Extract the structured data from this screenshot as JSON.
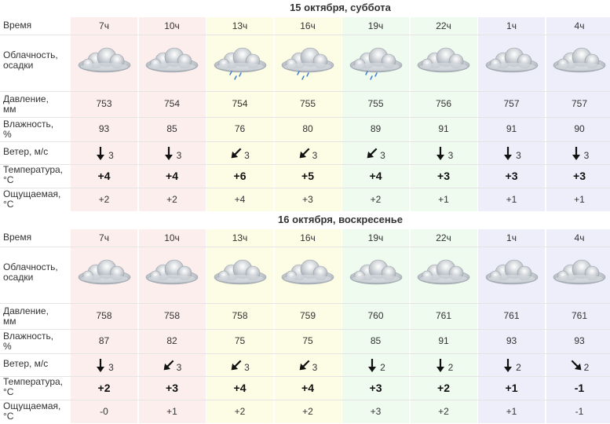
{
  "labels": {
    "time": "Время",
    "clouds1": "Облачность,",
    "clouds2": "осадки",
    "pressure1": "Давление,",
    "pressure2": "мм",
    "humidity1": "Влажность,",
    "humidity2": "%",
    "wind": "Ветер, м/с",
    "temp1": "Температура,",
    "temp2": "°C",
    "feels1": "Ощущаемая,",
    "feels2": "°C"
  },
  "colors": {
    "morning": "#fdeeee",
    "day": "#fdfde6",
    "evening": "#eefbee",
    "night": "#eeeefb"
  },
  "days": [
    {
      "title": "15 октября, суббота",
      "columns": [
        {
          "time": "7ч",
          "period": "morning",
          "icon": "cloudy-icon",
          "pressure": "753",
          "humidity": "93",
          "wind_dir": "N",
          "wind": "3",
          "temp": "+4",
          "feels": "+2"
        },
        {
          "time": "10ч",
          "period": "morning",
          "icon": "cloudy-icon",
          "pressure": "754",
          "humidity": "85",
          "wind_dir": "N",
          "wind": "3",
          "temp": "+4",
          "feels": "+2"
        },
        {
          "time": "13ч",
          "period": "day",
          "icon": "cloud-rain-icon",
          "pressure": "754",
          "humidity": "76",
          "wind_dir": "NE",
          "wind": "3",
          "temp": "+6",
          "feels": "+4"
        },
        {
          "time": "16ч",
          "period": "day",
          "icon": "cloud-rain-icon",
          "pressure": "755",
          "humidity": "80",
          "wind_dir": "NE",
          "wind": "3",
          "temp": "+5",
          "feels": "+3"
        },
        {
          "time": "19ч",
          "period": "evening",
          "icon": "cloud-rain-icon",
          "pressure": "755",
          "humidity": "89",
          "wind_dir": "NE",
          "wind": "3",
          "temp": "+4",
          "feels": "+2"
        },
        {
          "time": "22ч",
          "period": "evening",
          "icon": "cloudy-icon",
          "pressure": "756",
          "humidity": "91",
          "wind_dir": "N",
          "wind": "3",
          "temp": "+3",
          "feels": "+1"
        },
        {
          "time": "1ч",
          "period": "night",
          "icon": "cloudy-icon",
          "pressure": "757",
          "humidity": "91",
          "wind_dir": "N",
          "wind": "3",
          "temp": "+3",
          "feels": "+1"
        },
        {
          "time": "4ч",
          "period": "night",
          "icon": "cloudy-icon",
          "pressure": "757",
          "humidity": "90",
          "wind_dir": "N",
          "wind": "3",
          "temp": "+3",
          "feels": "+1"
        }
      ]
    },
    {
      "title": "16 октября, воскресенье",
      "columns": [
        {
          "time": "7ч",
          "period": "morning",
          "icon": "cloudy-icon",
          "pressure": "758",
          "humidity": "87",
          "wind_dir": "N",
          "wind": "3",
          "temp": "+2",
          "feels": "-0"
        },
        {
          "time": "10ч",
          "period": "morning",
          "icon": "cloudy-icon",
          "pressure": "758",
          "humidity": "82",
          "wind_dir": "NE",
          "wind": "3",
          "temp": "+3",
          "feels": "+1"
        },
        {
          "time": "13ч",
          "period": "day",
          "icon": "cloudy-icon",
          "pressure": "758",
          "humidity": "75",
          "wind_dir": "NE",
          "wind": "3",
          "temp": "+4",
          "feels": "+2"
        },
        {
          "time": "16ч",
          "period": "day",
          "icon": "cloudy-icon",
          "pressure": "759",
          "humidity": "75",
          "wind_dir": "NE",
          "wind": "3",
          "temp": "+4",
          "feels": "+2"
        },
        {
          "time": "19ч",
          "period": "evening",
          "icon": "cloudy-icon",
          "pressure": "760",
          "humidity": "85",
          "wind_dir": "N",
          "wind": "2",
          "temp": "+3",
          "feels": "+3"
        },
        {
          "time": "22ч",
          "period": "evening",
          "icon": "cloudy-icon",
          "pressure": "761",
          "humidity": "91",
          "wind_dir": "N",
          "wind": "2",
          "temp": "+2",
          "feels": "+2"
        },
        {
          "time": "1ч",
          "period": "night",
          "icon": "cloudy-icon",
          "pressure": "761",
          "humidity": "93",
          "wind_dir": "N",
          "wind": "2",
          "temp": "+1",
          "feels": "+1"
        },
        {
          "time": "4ч",
          "period": "night",
          "icon": "cloudy-icon",
          "pressure": "761",
          "humidity": "93",
          "wind_dir": "NW",
          "wind": "2",
          "temp": "-1",
          "feels": "-1"
        }
      ]
    }
  ]
}
